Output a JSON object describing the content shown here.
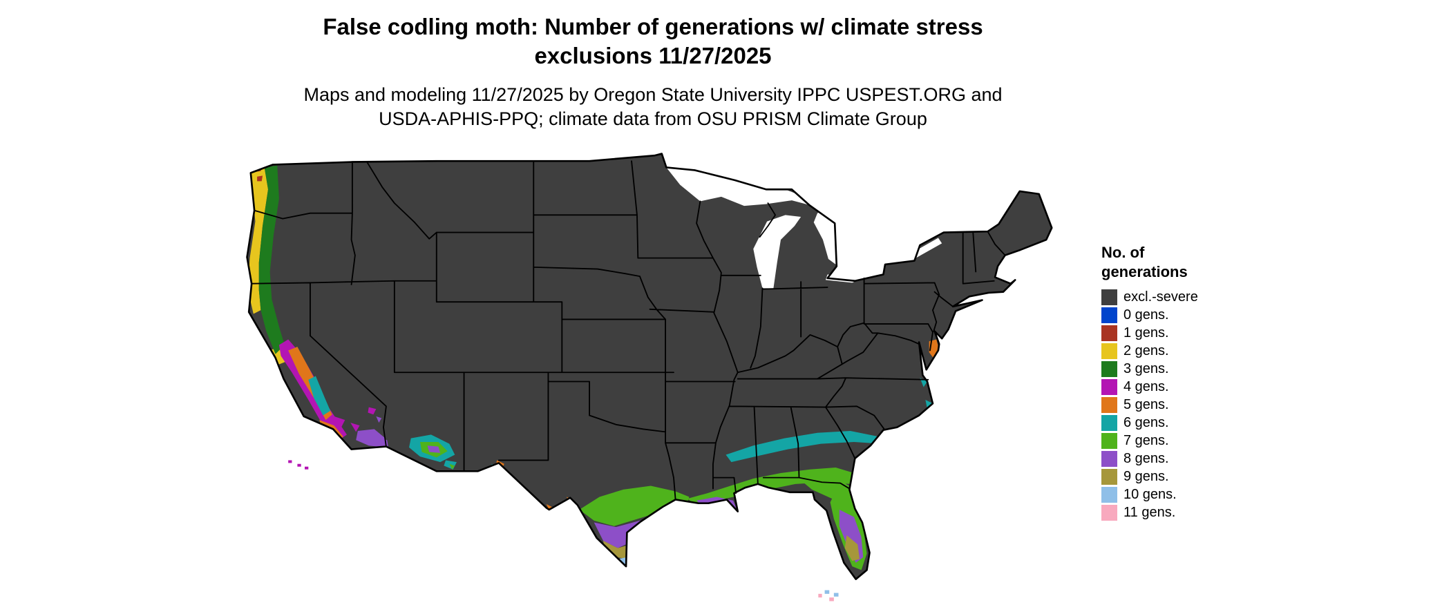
{
  "title": {
    "line1": "False codling moth: Number of generations w/ climate stress",
    "line2": "exclusions 11/27/2025"
  },
  "subtitle": {
    "line1": "Maps and modeling 11/27/2025 by Oregon State University IPPC USPEST.ORG and",
    "line2": "USDA-APHIS-PPQ; climate data from OSU PRISM Climate Group"
  },
  "legend": {
    "title_line1": "No. of",
    "title_line2": "generations",
    "items": [
      {
        "label": "excl.-severe",
        "color": "#3F3F3F"
      },
      {
        "label": "0 gens.",
        "color": "#0044CC"
      },
      {
        "label": "1 gens.",
        "color": "#A93422"
      },
      {
        "label": "2 gens.",
        "color": "#E7C51E"
      },
      {
        "label": "3 gens.",
        "color": "#1E7B1E"
      },
      {
        "label": "4 gens.",
        "color": "#B315B3"
      },
      {
        "label": "5 gens.",
        "color": "#E0761A"
      },
      {
        "label": "6 gens.",
        "color": "#14A5A5"
      },
      {
        "label": "7 gens.",
        "color": "#4FB31C"
      },
      {
        "label": "8 gens.",
        "color": "#8D4FC8"
      },
      {
        "label": "9 gens.",
        "color": "#A6973B"
      },
      {
        "label": "10 gens.",
        "color": "#8FBFE8"
      },
      {
        "label": "11 gens.",
        "color": "#F8A9BE"
      }
    ]
  }
}
